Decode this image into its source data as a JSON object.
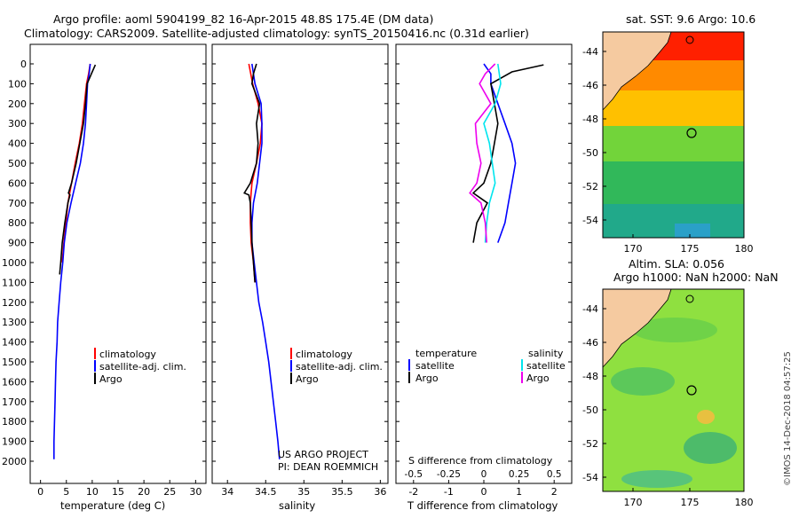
{
  "title": {
    "line1": "Argo profile: aoml 5904199_82 16-Apr-2015 48.8S 175.4E (DM data)",
    "line2": "Climatology: CARS2009. Satellite-adjusted climatology: synTS_20150416.nc (0.31d earlier)"
  },
  "colors": {
    "climatology": "#ff0000",
    "satellite": "#0000ff",
    "argo": "#000000",
    "satellite_salinity": "#00e5ee",
    "argo_salinity": "#ee00ee",
    "land": "#f5caa0"
  },
  "depth_axis": {
    "ticks": [
      "0",
      "100",
      "200",
      "300",
      "400",
      "500",
      "600",
      "700",
      "800",
      "900",
      "1000",
      "1100",
      "1200",
      "1300",
      "1400",
      "1500",
      "1600",
      "1700",
      "1800",
      "1900",
      "2000"
    ]
  },
  "panels": {
    "temperature": {
      "xlabel": "temperature (deg C)",
      "xticks": [
        "0",
        "5",
        "10",
        "15",
        "20",
        "25",
        "30"
      ],
      "legend": [
        "climatology",
        "satellite-adj. clim.",
        "Argo"
      ]
    },
    "salinity": {
      "xlabel": "salinity",
      "xticks": [
        "34",
        "34.5",
        "35",
        "35.5",
        "36"
      ],
      "legend": [
        "climatology",
        "satellite-adj. clim.",
        "Argo"
      ],
      "note1": "US ARGO PROJECT",
      "note2": "PI: DEAN ROEMMICH"
    },
    "difference": {
      "xlabel": "T difference from climatology",
      "xlabel_top": "S difference from climatology",
      "xticks": [
        "-2",
        "-1",
        "0",
        "1",
        "2"
      ],
      "sticks": [
        "-0.5",
        "-0.25",
        "0",
        "0.25",
        "0.5"
      ],
      "legend_t_head": "temperature",
      "legend_s_head": "salinity",
      "legend_t": [
        "satellite",
        "Argo"
      ],
      "legend_s": [
        "satellite",
        "Argo"
      ]
    }
  },
  "map_sst": {
    "title": "sat. SST: 9.6  Argo: 10.6",
    "yticks": [
      "-44",
      "-46",
      "-48",
      "-50",
      "-52",
      "-54"
    ],
    "xticks": [
      "170",
      "175",
      "180"
    ]
  },
  "map_sla": {
    "title1": "Altim. SLA: 0.056",
    "title2": "Argo h1000: NaN h2000: NaN",
    "yticks": [
      "-44",
      "-46",
      "-48",
      "-50",
      "-52",
      "-54"
    ],
    "xticks": [
      "170",
      "175",
      "180"
    ]
  },
  "watermark": "©IMOS 14-Dec-2018 04:57:25",
  "chart_data": [
    {
      "type": "line",
      "title": "",
      "xlabel": "temperature (deg C)",
      "ylabel": "",
      "xlim": [
        -2,
        32
      ],
      "ylim": [
        2050,
        0
      ],
      "series": [
        {
          "name": "climatology",
          "points": [
            [
              9.6,
              0
            ],
            [
              9.3,
              50
            ],
            [
              8.9,
              100
            ],
            [
              8.5,
              200
            ],
            [
              8.1,
              300
            ],
            [
              7.5,
              400
            ],
            [
              6.7,
              500
            ],
            [
              6.0,
              600
            ],
            [
              5.3,
              700
            ],
            [
              4.9,
              800
            ],
            [
              4.5,
              900
            ],
            [
              4.2,
              1000
            ]
          ]
        },
        {
          "name": "satellite-adj. clim.",
          "points": [
            [
              9.6,
              0
            ],
            [
              9.4,
              50
            ],
            [
              9.1,
              100
            ],
            [
              8.9,
              200
            ],
            [
              8.7,
              300
            ],
            [
              8.3,
              400
            ],
            [
              7.7,
              500
            ],
            [
              6.8,
              600
            ],
            [
              5.9,
              700
            ],
            [
              5.1,
              800
            ],
            [
              4.6,
              900
            ],
            [
              4.3,
              1000
            ],
            [
              3.9,
              1100
            ],
            [
              3.6,
              1200
            ],
            [
              3.3,
              1300
            ],
            [
              3.2,
              1400
            ],
            [
              3.0,
              1500
            ],
            [
              2.9,
              1600
            ],
            [
              2.8,
              1700
            ],
            [
              2.7,
              1800
            ],
            [
              2.6,
              1900
            ],
            [
              2.6,
              1990
            ]
          ]
        },
        {
          "name": "Argo",
          "points": [
            [
              10.6,
              5
            ],
            [
              10.0,
              40
            ],
            [
              9.0,
              100
            ],
            [
              8.7,
              200
            ],
            [
              8.3,
              300
            ],
            [
              7.6,
              400
            ],
            [
              6.9,
              500
            ],
            [
              6.0,
              600
            ],
            [
              5.4,
              650
            ],
            [
              5.7,
              660
            ],
            [
              5.3,
              700
            ],
            [
              4.7,
              800
            ],
            [
              4.2,
              900
            ],
            [
              3.9,
              1000
            ],
            [
              3.7,
              1060
            ]
          ]
        }
      ]
    },
    {
      "type": "line",
      "title": "",
      "xlabel": "salinity",
      "ylabel": "",
      "xlim": [
        33.8,
        36.1
      ],
      "ylim": [
        2050,
        0
      ],
      "series": [
        {
          "name": "climatology",
          "points": [
            [
              34.28,
              0
            ],
            [
              34.33,
              100
            ],
            [
              34.4,
              200
            ],
            [
              34.45,
              300
            ],
            [
              34.43,
              400
            ],
            [
              34.38,
              500
            ],
            [
              34.32,
              600
            ],
            [
              34.3,
              700
            ],
            [
              34.3,
              800
            ],
            [
              34.31,
              900
            ],
            [
              34.34,
              1000
            ],
            [
              34.36,
              1100
            ]
          ]
        },
        {
          "name": "satellite-adj. clim.",
          "points": [
            [
              34.32,
              0
            ],
            [
              34.36,
              100
            ],
            [
              34.44,
              200
            ],
            [
              34.45,
              300
            ],
            [
              34.45,
              400
            ],
            [
              34.42,
              500
            ],
            [
              34.39,
              600
            ],
            [
              34.34,
              700
            ],
            [
              34.32,
              800
            ],
            [
              34.32,
              900
            ],
            [
              34.35,
              1000
            ],
            [
              34.38,
              1100
            ],
            [
              34.41,
              1200
            ],
            [
              34.46,
              1300
            ],
            [
              34.5,
              1400
            ],
            [
              34.54,
              1500
            ],
            [
              34.57,
              1600
            ],
            [
              34.6,
              1700
            ],
            [
              34.63,
              1800
            ],
            [
              34.66,
              1900
            ],
            [
              34.68,
              1990
            ]
          ]
        },
        {
          "name": "Argo",
          "points": [
            [
              34.38,
              0
            ],
            [
              34.34,
              50
            ],
            [
              34.32,
              100
            ],
            [
              34.42,
              200
            ],
            [
              34.38,
              300
            ],
            [
              34.4,
              400
            ],
            [
              34.38,
              500
            ],
            [
              34.3,
              600
            ],
            [
              34.22,
              650
            ],
            [
              34.28,
              660
            ],
            [
              34.3,
              700
            ],
            [
              34.31,
              800
            ],
            [
              34.32,
              900
            ],
            [
              34.34,
              1000
            ],
            [
              34.36,
              1100
            ]
          ]
        }
      ]
    },
    {
      "type": "line",
      "title": "",
      "xlabel": "T difference from climatology",
      "ylabel": "",
      "xlim": [
        -2.5,
        2.5
      ],
      "ylim": [
        2050,
        0
      ],
      "series": [
        {
          "name": "temperature satellite",
          "points": [
            [
              0.0,
              0
            ],
            [
              0.2,
              50
            ],
            [
              0.2,
              100
            ],
            [
              0.4,
              200
            ],
            [
              0.6,
              300
            ],
            [
              0.8,
              400
            ],
            [
              0.9,
              500
            ],
            [
              0.8,
              600
            ],
            [
              0.7,
              700
            ],
            [
              0.6,
              800
            ],
            [
              0.4,
              900
            ]
          ]
        },
        {
          "name": "temperature Argo",
          "points": [
            [
              1.7,
              5
            ],
            [
              0.8,
              40
            ],
            [
              0.2,
              100
            ],
            [
              0.3,
              200
            ],
            [
              0.4,
              300
            ],
            [
              0.3,
              400
            ],
            [
              0.2,
              500
            ],
            [
              0.0,
              600
            ],
            [
              -0.3,
              650
            ],
            [
              0.1,
              700
            ],
            [
              -0.2,
              800
            ],
            [
              -0.3,
              900
            ]
          ]
        },
        {
          "name": "salinity satellite",
          "points": [
            [
              0.1,
              0
            ],
            [
              0.12,
              100
            ],
            [
              0.08,
              200
            ],
            [
              0.0,
              300
            ],
            [
              0.04,
              400
            ],
            [
              0.06,
              500
            ],
            [
              0.08,
              600
            ],
            [
              0.04,
              700
            ],
            [
              0.02,
              800
            ],
            [
              0.01,
              900
            ]
          ]
        },
        {
          "name": "salinity Argo",
          "points": [
            [
              0.08,
              0
            ],
            [
              0.01,
              50
            ],
            [
              -0.03,
              100
            ],
            [
              0.05,
              200
            ],
            [
              -0.06,
              300
            ],
            [
              -0.05,
              400
            ],
            [
              -0.02,
              500
            ],
            [
              -0.05,
              600
            ],
            [
              -0.1,
              650
            ],
            [
              -0.02,
              700
            ],
            [
              0.01,
              800
            ],
            [
              0.02,
              900
            ]
          ]
        }
      ]
    },
    {
      "type": "heatmap",
      "title": "sat. SST: 9.6  Argo: 10.6",
      "xlabel": "",
      "ylabel": "",
      "xlim": [
        167.5,
        180
      ],
      "ylim": [
        -55,
        -43
      ],
      "marker": {
        "lon": 175.4,
        "lat": -48.8
      }
    },
    {
      "type": "heatmap",
      "title": "Altim. SLA: 0.056",
      "xlabel": "",
      "ylabel": "",
      "xlim": [
        167.5,
        180
      ],
      "ylim": [
        -55,
        -43
      ],
      "marker": {
        "lon": 175.4,
        "lat": -48.8
      }
    }
  ]
}
